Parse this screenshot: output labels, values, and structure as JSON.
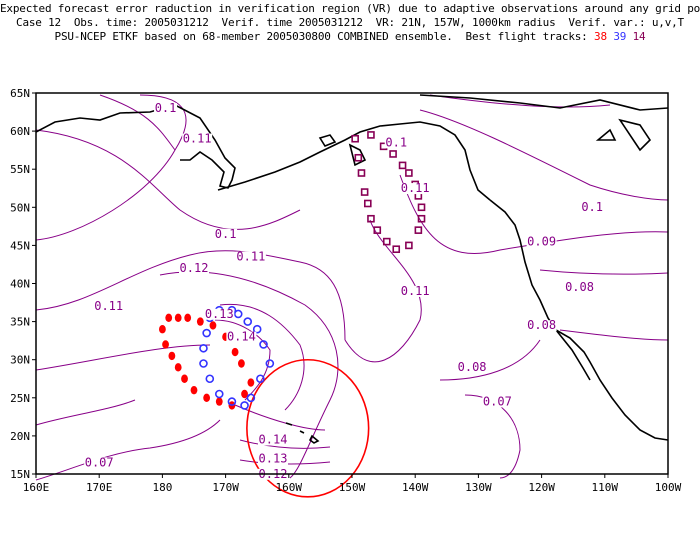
{
  "header": {
    "line1": "Expected forecast error raduction in verification region (VR) due to adaptive observations around any grid point.",
    "line2": "Case 12  Obs. time: 2005031212  Verif. time 2005031212  VR: 21N, 157W, 1000km radius  Verif. var.: u,v,T",
    "line3_prefix": "PSU-NCEP ETKF based on 68-member 2005030800 COMBINED ensemble.  Best flight tracks: ",
    "track_a": "38",
    "track_b": "39",
    "track_c": "14"
  },
  "axes": {
    "lat_labels": [
      "15N",
      "20N",
      "25N",
      "30N",
      "35N",
      "40N",
      "45N",
      "50N",
      "55N",
      "60N",
      "65N"
    ],
    "lon_labels": [
      "160E",
      "170E",
      "180",
      "170W",
      "160W",
      "150W",
      "140W",
      "130W",
      "120W",
      "110W",
      "100W"
    ]
  },
  "contour_labels": [
    {
      "text": "0.1",
      "lon": -179.5,
      "lat": 62.5
    },
    {
      "text": "0.11",
      "lon": -174.5,
      "lat": 58.5
    },
    {
      "text": "0.1",
      "lon": -143,
      "lat": 58
    },
    {
      "text": "0.11",
      "lon": -140,
      "lat": 52
    },
    {
      "text": "0.1",
      "lon": -170,
      "lat": 46
    },
    {
      "text": "0.11",
      "lon": -166,
      "lat": 43
    },
    {
      "text": "0.12",
      "lon": -175,
      "lat": 41.5
    },
    {
      "text": "0.11",
      "lon": -140,
      "lat": 38.5
    },
    {
      "text": "0.11",
      "lon": -188.5,
      "lat": 36.5
    },
    {
      "text": "0.13",
      "lon": -171,
      "lat": 35.5
    },
    {
      "text": "0.14",
      "lon": -167.5,
      "lat": 32.5
    },
    {
      "text": "0.14",
      "lon": -162.5,
      "lat": 19
    },
    {
      "text": "0.13",
      "lon": -162.5,
      "lat": 16.5
    },
    {
      "text": "0.12",
      "lon": -162.5,
      "lat": 14.5
    },
    {
      "text": "0.1",
      "lon": -112,
      "lat": 49.5
    },
    {
      "text": "0.09",
      "lon": -120,
      "lat": 45
    },
    {
      "text": "0.08",
      "lon": -114,
      "lat": 39
    },
    {
      "text": "0.08",
      "lon": -120,
      "lat": 34
    },
    {
      "text": "0.08",
      "lon": -131,
      "lat": 28.5
    },
    {
      "text": "0.07",
      "lon": -127,
      "lat": 24
    },
    {
      "text": "0.07",
      "lon": -190,
      "lat": 16
    }
  ],
  "tracks": {
    "red": {
      "color": "#ff0000",
      "points": [
        [
          -177.5,
          35.5
        ],
        [
          -176,
          35.5
        ],
        [
          -174,
          35
        ],
        [
          -172,
          34.5
        ],
        [
          -170,
          33
        ],
        [
          -168.5,
          31
        ],
        [
          -167.5,
          29.5
        ],
        [
          -166,
          27
        ],
        [
          -167,
          25.5
        ],
        [
          -169,
          24
        ],
        [
          -171,
          24.5
        ],
        [
          -173,
          25
        ],
        [
          -175,
          26
        ],
        [
          -176.5,
          27.5
        ],
        [
          -177.5,
          29
        ],
        [
          -178.5,
          30.5
        ],
        [
          -179.5,
          32
        ],
        [
          -180,
          34
        ],
        [
          -179,
          35.5
        ]
      ]
    },
    "blue": {
      "color": "#3333ff",
      "points": [
        [
          -169,
          36.5
        ],
        [
          -168,
          36
        ],
        [
          -166.5,
          35
        ],
        [
          -165,
          34
        ],
        [
          -164,
          32
        ],
        [
          -163,
          29.5
        ],
        [
          -164.5,
          27.5
        ],
        [
          -166,
          25
        ],
        [
          -167,
          24
        ],
        [
          -169,
          24.5
        ],
        [
          -171,
          25.5
        ],
        [
          -172.5,
          27.5
        ],
        [
          -173.5,
          29.5
        ],
        [
          -173.5,
          31.5
        ],
        [
          -173,
          33.5
        ],
        [
          -172.5,
          35.5
        ],
        [
          -171,
          36.5
        ]
      ]
    },
    "purple": {
      "color": "#880055",
      "points": [
        [
          -149.5,
          59
        ],
        [
          -147,
          59.5
        ],
        [
          -145,
          58
        ],
        [
          -143.5,
          57
        ],
        [
          -142,
          55.5
        ],
        [
          -141,
          54.5
        ],
        [
          -140,
          53
        ],
        [
          -139.5,
          51.5
        ],
        [
          -139,
          50
        ],
        [
          -139,
          48.5
        ],
        [
          -139.5,
          47
        ],
        [
          -141,
          45
        ],
        [
          -143,
          44.5
        ],
        [
          -144.5,
          45.5
        ],
        [
          -146,
          47
        ],
        [
          -147,
          48.5
        ],
        [
          -147.5,
          50.5
        ],
        [
          -148,
          52
        ],
        [
          -148.5,
          54.5
        ],
        [
          -149,
          56.5
        ]
      ]
    }
  },
  "verification_region": {
    "center_lon": -157,
    "center_lat": 21,
    "radius_km": 1000,
    "color": "#ff0000"
  },
  "colors": {
    "contour": "#880088",
    "coast": "#000000",
    "frame": "#000000"
  }
}
